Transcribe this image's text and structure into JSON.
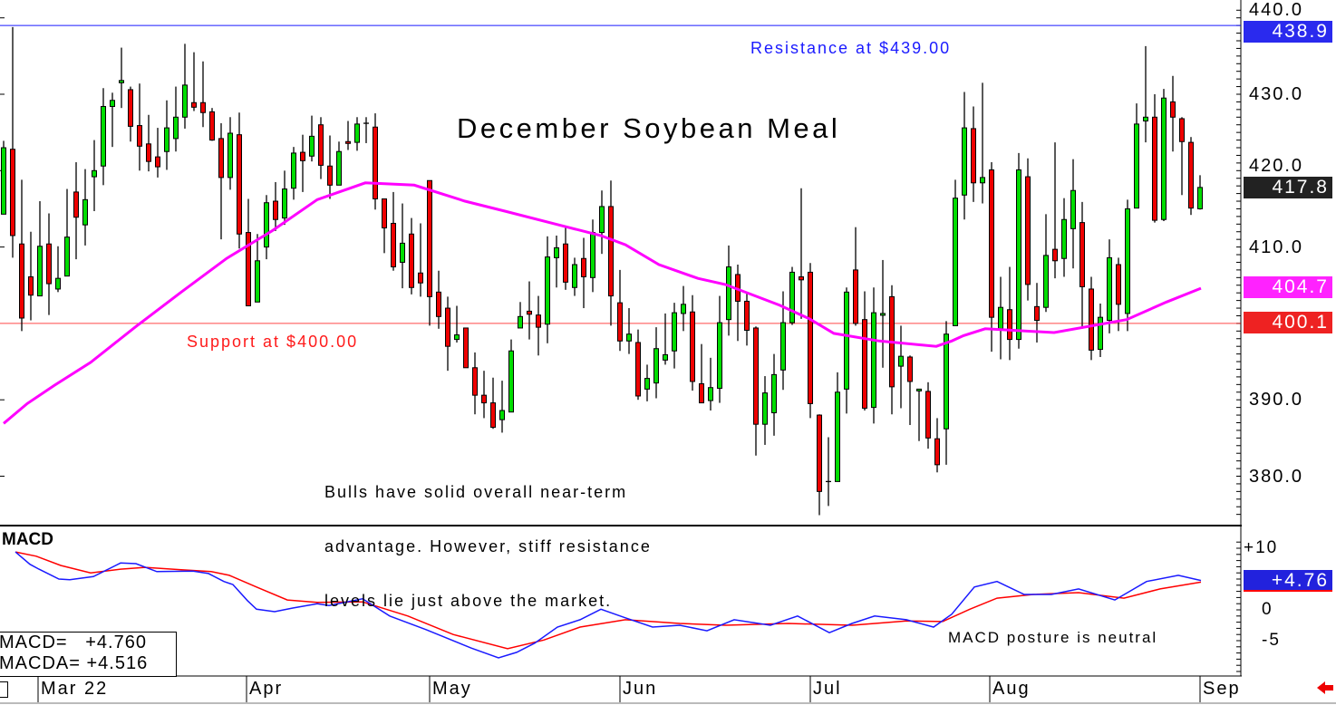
{
  "chart_data": {
    "type": "candlestick",
    "title": "December Soybean Meal",
    "price_axis": {
      "ylim": [
        374,
        441
      ],
      "ticks": [
        "440.0",
        "430.0",
        "420.0",
        "410.0",
        "390.0",
        "380.0"
      ],
      "tick_values": [
        440,
        430,
        420,
        410,
        390,
        380
      ]
    },
    "macd_axis": {
      "ylim": [
        -10,
        11
      ],
      "ticks": [
        "+10",
        "0",
        "-5"
      ],
      "tick_values": [
        10,
        0,
        -5
      ]
    },
    "months": [
      {
        "label": "Mar 22",
        "index": 4
      },
      {
        "label": "Apr",
        "index": 27
      },
      {
        "label": "May",
        "index": 47.2
      },
      {
        "label": "Jun",
        "index": 68.2
      },
      {
        "label": "Jul",
        "index": 89.2
      },
      {
        "label": "Aug",
        "index": 109
      },
      {
        "label": "Sep",
        "index": 132.2
      }
    ],
    "candles_ohlc": [
      [
        414.3,
        423.9,
        414.3,
        423.0
      ],
      [
        422.8,
        438.8,
        408.6,
        411.5
      ],
      [
        410.4,
        418.8,
        399.0,
        400.7
      ],
      [
        406.1,
        412.0,
        400.4,
        403.7
      ],
      [
        403.6,
        416.0,
        403.6,
        410.1
      ],
      [
        410.4,
        414.4,
        401.1,
        405.2
      ],
      [
        404.5,
        410.1,
        404.1,
        405.9
      ],
      [
        406.2,
        417.6,
        406.2,
        411.3
      ],
      [
        417.2,
        421.1,
        408.4,
        413.9
      ],
      [
        412.9,
        420.2,
        410.2,
        416.2
      ],
      [
        419.2,
        424.0,
        414.7,
        420.0
      ],
      [
        420.6,
        430.8,
        418.1,
        428.4
      ],
      [
        428.4,
        430.2,
        423.1,
        429.2
      ],
      [
        431.5,
        436.1,
        428.2,
        431.8
      ],
      [
        430.6,
        431.0,
        423.8,
        425.8
      ],
      [
        425.9,
        431.4,
        420.0,
        423.2
      ],
      [
        423.5,
        427.3,
        419.9,
        421.2
      ],
      [
        421.8,
        425.6,
        419.1,
        420.5
      ],
      [
        422.5,
        429.2,
        420.1,
        425.6
      ],
      [
        424.2,
        431.0,
        422.5,
        427.0
      ],
      [
        427.0,
        436.6,
        425.5,
        431.2
      ],
      [
        428.9,
        435.5,
        427.8,
        428.3
      ],
      [
        428.9,
        434.3,
        425.7,
        427.6
      ],
      [
        427.7,
        428.2,
        423.9,
        424.0
      ],
      [
        424.2,
        426.2,
        411.0,
        419.1
      ],
      [
        419.1,
        427.0,
        417.5,
        424.9
      ],
      [
        424.7,
        427.6,
        409.8,
        411.7
      ],
      [
        411.9,
        416.3,
        402.3,
        402.3
      ],
      [
        402.8,
        411.7,
        402.8,
        408.2
      ],
      [
        410.0,
        416.8,
        408.4,
        415.8
      ],
      [
        416.0,
        418.5,
        412.1,
        413.6
      ],
      [
        413.8,
        420.0,
        412.9,
        417.6
      ],
      [
        417.7,
        423.1,
        416.2,
        422.3
      ],
      [
        422.4,
        424.7,
        417.2,
        421.3
      ],
      [
        421.9,
        427.2,
        421.2,
        424.5
      ],
      [
        426.0,
        427.0,
        418.9,
        420.7
      ],
      [
        420.6,
        424.6,
        416.3,
        418.1
      ],
      [
        418.1,
        423.8,
        418.1,
        422.5
      ],
      [
        423.8,
        426.5,
        422.7,
        423.6
      ],
      [
        423.7,
        427.0,
        422.6,
        426.1
      ],
      [
        426.2,
        427.0,
        423.6,
        426.2
      ],
      [
        425.7,
        427.5,
        414.9,
        416.3
      ],
      [
        416.3,
        416.3,
        409.2,
        412.5
      ],
      [
        413.1,
        417.2,
        406.9,
        407.4
      ],
      [
        408.0,
        415.7,
        404.6,
        410.5
      ],
      [
        411.7,
        413.8,
        403.8,
        404.7
      ],
      [
        406.6,
        413.1,
        403.5,
        405.3
      ],
      [
        418.7,
        418.7,
        399.7,
        403.5
      ],
      [
        404.1,
        406.9,
        399.3,
        400.9
      ],
      [
        402.0,
        403.5,
        393.8,
        397.0
      ],
      [
        397.9,
        402.3,
        397.5,
        398.5
      ],
      [
        399.4,
        399.4,
        394.2,
        394.2
      ],
      [
        394.2,
        396.2,
        388.1,
        390.6
      ],
      [
        390.6,
        393.8,
        387.6,
        389.6
      ],
      [
        389.6,
        392.9,
        386.2,
        386.4
      ],
      [
        387.4,
        392.5,
        385.7,
        388.6
      ],
      [
        388.4,
        397.9,
        388.4,
        396.4
      ],
      [
        399.4,
        402.8,
        399.4,
        400.9
      ],
      [
        401.6,
        405.5,
        397.9,
        401.2
      ],
      [
        401.1,
        403.6,
        395.8,
        399.5
      ],
      [
        399.9,
        411.4,
        397.4,
        408.7
      ],
      [
        408.6,
        411.5,
        404.7,
        409.9
      ],
      [
        410.4,
        412.8,
        404.4,
        405.4
      ],
      [
        404.7,
        408.6,
        403.6,
        407.7
      ],
      [
        408.5,
        411.2,
        402.0,
        406.1
      ],
      [
        406.0,
        413.6,
        404.1,
        411.9
      ],
      [
        411.9,
        417.4,
        409.1,
        415.3
      ],
      [
        415.3,
        418.7,
        399.7,
        403.6
      ],
      [
        402.7,
        407.0,
        396.4,
        397.7
      ],
      [
        397.7,
        402.0,
        396.0,
        398.6
      ],
      [
        397.5,
        399.2,
        390.0,
        390.5
      ],
      [
        391.4,
        394.6,
        389.8,
        392.8
      ],
      [
        392.2,
        399.5,
        390.2,
        396.7
      ],
      [
        395.2,
        401.3,
        394.6,
        395.9
      ],
      [
        396.4,
        402.7,
        394.1,
        401.4
      ],
      [
        401.3,
        404.9,
        399.0,
        402.5
      ],
      [
        401.5,
        403.7,
        391.2,
        392.4
      ],
      [
        392.1,
        397.3,
        389.6,
        389.6
      ],
      [
        389.9,
        395.5,
        388.6,
        391.6
      ],
      [
        391.5,
        403.6,
        389.6,
        400.1
      ],
      [
        400.5,
        410.2,
        398.4,
        407.4
      ],
      [
        406.4,
        407.7,
        397.7,
        402.9
      ],
      [
        402.9,
        404.1,
        397.1,
        399.1
      ],
      [
        399.4,
        399.6,
        382.7,
        386.8
      ],
      [
        386.8,
        393.1,
        384.1,
        390.9
      ],
      [
        388.3,
        396.0,
        385.3,
        393.3
      ],
      [
        393.9,
        404.2,
        391.3,
        400.1
      ],
      [
        400.1,
        407.4,
        399.8,
        406.7
      ],
      [
        406.1,
        417.7,
        400.6,
        405.7
      ],
      [
        406.7,
        407.9,
        387.6,
        389.5
      ],
      [
        388.0,
        388.1,
        374.9,
        378.0
      ],
      [
        379.3,
        385.1,
        376.1,
        379.3
      ],
      [
        379.3,
        393.6,
        379.3,
        391.0
      ],
      [
        391.4,
        404.7,
        388.2,
        404.1
      ],
      [
        407.0,
        412.6,
        399.7,
        400.0
      ],
      [
        400.5,
        404.2,
        388.6,
        388.9
      ],
      [
        389.0,
        404.7,
        386.9,
        401.4
      ],
      [
        401.1,
        408.3,
        394.2,
        401.3
      ],
      [
        403.5,
        405.0,
        388.1,
        391.7
      ],
      [
        394.4,
        399.7,
        388.9,
        395.7
      ],
      [
        395.6,
        395.8,
        386.7,
        392.4
      ],
      [
        391.2,
        391.3,
        384.6,
        391.4
      ],
      [
        391.1,
        392.3,
        383.6,
        385.0
      ],
      [
        384.9,
        387.6,
        380.5,
        381.5
      ],
      [
        386.2,
        400.3,
        381.5,
        398.6
      ],
      [
        399.7,
        418.8,
        399.7,
        416.4
      ],
      [
        416.8,
        430.3,
        413.6,
        425.6
      ],
      [
        425.5,
        428.4,
        415.9,
        418.4
      ],
      [
        418.4,
        431.5,
        415.7,
        419.1
      ],
      [
        420.1,
        421.1,
        396.3,
        400.8
      ],
      [
        399.3,
        406.1,
        395.3,
        402.1
      ],
      [
        401.8,
        407.4,
        395.2,
        397.9
      ],
      [
        397.9,
        422.3,
        396.7,
        420.1
      ],
      [
        419.2,
        421.6,
        403.0,
        405.1
      ],
      [
        402.2,
        405.3,
        397.5,
        400.4
      ],
      [
        402.1,
        414.3,
        401.5,
        408.9
      ],
      [
        409.7,
        423.7,
        405.9,
        408.2
      ],
      [
        408.5,
        416.4,
        406.1,
        413.6
      ],
      [
        412.4,
        421.5,
        407.2,
        417.4
      ],
      [
        413.2,
        415.9,
        399.3,
        404.8
      ],
      [
        404.5,
        406.1,
        395.2,
        396.5
      ],
      [
        396.6,
        402.6,
        395.6,
        400.8
      ],
      [
        400.4,
        411.0,
        398.7,
        408.6
      ],
      [
        407.7,
        408.6,
        399.0,
        402.5
      ],
      [
        401.3,
        416.2,
        399.0,
        415.0
      ],
      [
        415.1,
        428.8,
        415.1,
        426.1
      ],
      [
        426.5,
        436.3,
        423.7,
        427.0
      ],
      [
        427.0,
        430.0,
        413.2,
        413.5
      ],
      [
        413.6,
        430.7,
        413.4,
        429.5
      ],
      [
        429.0,
        432.4,
        422.5,
        427.0
      ],
      [
        426.8,
        427.0,
        416.8,
        423.8
      ],
      [
        423.7,
        424.4,
        414.2,
        415.1
      ],
      [
        415.0,
        419.4,
        414.9,
        417.8
      ]
    ],
    "moving_average": [
      [
        0,
        386.9
      ],
      [
        2.6,
        389.5
      ],
      [
        5.6,
        391.9
      ],
      [
        9.6,
        394.9
      ],
      [
        14.6,
        399.6
      ],
      [
        19.6,
        404.1
      ],
      [
        24.6,
        408.5
      ],
      [
        29.6,
        412.1
      ],
      [
        34.6,
        416.2
      ],
      [
        39.9,
        418.4
      ],
      [
        45.3,
        418.1
      ],
      [
        50.9,
        416.0
      ],
      [
        55.3,
        414.7
      ],
      [
        60.9,
        413.0
      ],
      [
        65.9,
        411.5
      ],
      [
        68.6,
        410.3
      ],
      [
        72.3,
        407.7
      ],
      [
        76.6,
        405.9
      ],
      [
        79.6,
        405.1
      ],
      [
        85.6,
        402.4
      ],
      [
        88.9,
        400.6
      ],
      [
        91.6,
        398.7
      ],
      [
        96.6,
        397.7
      ],
      [
        102.9,
        397.0
      ],
      [
        104.6,
        397.7
      ],
      [
        105.9,
        398.4
      ],
      [
        108.3,
        399.3
      ],
      [
        115.9,
        398.8
      ],
      [
        123.9,
        400.5
      ],
      [
        128.3,
        402.8
      ],
      [
        132.1,
        404.6
      ]
    ],
    "macd": [
      [
        1.3,
        9.4
      ],
      [
        2.9,
        7.4
      ],
      [
        3.9,
        6.6
      ],
      [
        6.1,
        5.0
      ],
      [
        7.3,
        4.9
      ],
      [
        9.9,
        5.4
      ],
      [
        12.9,
        7.6
      ],
      [
        14.6,
        7.5
      ],
      [
        16.9,
        6.2
      ],
      [
        20.9,
        6.3
      ],
      [
        22.6,
        5.9
      ],
      [
        24.3,
        4.6
      ],
      [
        25.3,
        4.1
      ],
      [
        26.9,
        1.5
      ],
      [
        27.9,
        0.1
      ],
      [
        29.9,
        -0.3
      ],
      [
        31.9,
        0.3
      ],
      [
        34.6,
        1.0
      ],
      [
        35.9,
        0.7
      ],
      [
        39.6,
        1.8
      ],
      [
        42.6,
        -1.0
      ],
      [
        46.6,
        -3.2
      ],
      [
        51.6,
        -6.2
      ],
      [
        54.6,
        -7.8
      ],
      [
        56.6,
        -6.9
      ],
      [
        58.6,
        -5.4
      ],
      [
        61.1,
        -2.8
      ],
      [
        63.6,
        -1.6
      ],
      [
        65.9,
        0.1
      ],
      [
        68.6,
        -1.3
      ],
      [
        71.6,
        -2.8
      ],
      [
        74.6,
        -2.5
      ],
      [
        77.6,
        -3.4
      ],
      [
        80.6,
        -1.6
      ],
      [
        84.6,
        -2.5
      ],
      [
        87.6,
        -1.0
      ],
      [
        91.1,
        -3.7
      ],
      [
        93.6,
        -2.2
      ],
      [
        96.1,
        -1.0
      ],
      [
        99.6,
        -1.6
      ],
      [
        102.6,
        -2.8
      ],
      [
        104.6,
        -0.7
      ],
      [
        107.1,
        3.7
      ],
      [
        109.6,
        4.6
      ],
      [
        112.6,
        2.5
      ],
      [
        115.6,
        2.5
      ],
      [
        118.6,
        3.4
      ],
      [
        122.6,
        1.6
      ],
      [
        126.1,
        4.6
      ],
      [
        129.6,
        5.6
      ],
      [
        132.1,
        4.76
      ]
    ],
    "macd_average": [
      [
        1.3,
        9.4
      ],
      [
        3.6,
        8.7
      ],
      [
        6.3,
        7.2
      ],
      [
        9.6,
        6.0
      ],
      [
        12.9,
        6.6
      ],
      [
        15.6,
        6.9
      ],
      [
        19.6,
        6.5
      ],
      [
        22.9,
        6.2
      ],
      [
        24.9,
        5.6
      ],
      [
        27.9,
        3.7
      ],
      [
        31.3,
        1.6
      ],
      [
        34.6,
        1.2
      ],
      [
        39.6,
        1.3
      ],
      [
        44.6,
        -1.0
      ],
      [
        49.6,
        -4.0
      ],
      [
        55.6,
        -6.3
      ],
      [
        59.6,
        -4.9
      ],
      [
        63.6,
        -2.8
      ],
      [
        68.6,
        -1.6
      ],
      [
        74.6,
        -2.2
      ],
      [
        79.6,
        -2.5
      ],
      [
        86.6,
        -2.2
      ],
      [
        93.6,
        -2.5
      ],
      [
        99.6,
        -1.8
      ],
      [
        103.6,
        -1.9
      ],
      [
        106.6,
        0.1
      ],
      [
        109.6,
        1.9
      ],
      [
        113.6,
        2.5
      ],
      [
        118.6,
        2.8
      ],
      [
        123.6,
        1.9
      ],
      [
        127.6,
        3.4
      ],
      [
        132.1,
        4.5
      ]
    ],
    "resistance": {
      "value": 439.0,
      "label": "Resistance at $439.00",
      "color": "#1a1aff"
    },
    "support": {
      "value": 400.0,
      "label": "Support at $400.00",
      "color": "#ff1a1a"
    },
    "annotation": [
      "Bulls have solid overall near-term",
      "advantage. However, stiff resistance",
      "levels lie just above the market."
    ],
    "macd_note": "MACD posture is neutral",
    "macd_title": "MACD",
    "readout": {
      "macd": "MACD=   +4.760",
      "macda": "MACDA= +4.516"
    },
    "tags": {
      "resistance": {
        "text": "438.9",
        "value": 438.9,
        "color": "#2a2aee"
      },
      "last": {
        "text": "417.8",
        "value": 417.8,
        "color": "#222222"
      },
      "ma": {
        "text": "404.7",
        "value": 404.7,
        "color": "#ff22ff"
      },
      "support": {
        "text": "400.1",
        "value": 400.1,
        "color": "#ee2222"
      },
      "macd": {
        "text": "+4.76",
        "value": 4.76,
        "color": "#2222dd"
      }
    },
    "colors": {
      "up": "#00dd00",
      "down": "#ee0000",
      "ma": "#ff00ff",
      "macd": "#1a1aff",
      "macd_avg": "#ff0000"
    }
  }
}
